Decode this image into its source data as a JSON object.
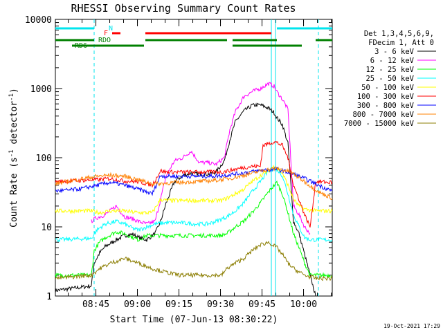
{
  "chart_data": {
    "type": "line",
    "title": "RHESSI Observing Summary Count Rates",
    "xlabel": "Start Time (07-Jun-13 08:30:22)",
    "ylabel_main": "Count Rate (s",
    "ylabel_sup1": "-1",
    "ylabel_mid": " detector",
    "ylabel_sup2": "-1",
    "ylabel_end": ")",
    "y_scale": "log",
    "ylim": [
      1,
      10000
    ],
    "xlim_minutes": [
      0,
      100
    ],
    "x_ticks": [
      "08:45",
      "09:00",
      "09:15",
      "09:30",
      "09:45",
      "10:00"
    ],
    "y_ticks": [
      "1",
      "10",
      "100",
      "1000",
      "10000"
    ],
    "legend_header": [
      "Det 1,3,4,5,6,9,",
      "FDecim 1, Att 0"
    ],
    "legend_position": "right",
    "timestamp": "19-Oct-2021 17:29",
    "flags": {
      "N_label": "N",
      "F_label": "F",
      "RDO_label": "RDO",
      "RD6_label": "RD6"
    },
    "series": [
      {
        "name": "3 - 6 keV",
        "color": "#000000",
        "x": [
          0,
          13,
          14,
          16,
          18,
          22,
          25,
          28,
          30,
          33,
          36,
          38,
          40,
          43,
          46,
          49,
          52,
          55,
          58,
          61,
          63,
          65,
          68,
          71,
          74,
          77,
          79,
          80,
          82,
          84,
          86,
          88,
          90,
          92,
          94
        ],
        "values": [
          1.2,
          1.4,
          3,
          4.2,
          5.2,
          6.5,
          7.5,
          7.8,
          7,
          6.5,
          8,
          12,
          22,
          45,
          55,
          60,
          58,
          58,
          62,
          90,
          180,
          330,
          470,
          570,
          580,
          520,
          450,
          380,
          300,
          160,
          12,
          8,
          4,
          2,
          1
        ]
      },
      {
        "name": "6 - 12 keV",
        "color": "#ff00ff",
        "x": [
          13,
          14,
          16,
          18,
          22,
          25,
          28,
          30,
          33,
          36,
          38,
          40,
          43,
          46,
          49,
          52,
          55,
          58,
          61,
          63,
          65,
          68,
          71,
          74,
          77,
          79,
          80,
          82,
          84,
          86,
          88,
          90,
          92
        ],
        "values": [
          12,
          13,
          14,
          15,
          20,
          14,
          13,
          12,
          11,
          12,
          25,
          55,
          90,
          100,
          125,
          85,
          85,
          80,
          100,
          250,
          460,
          760,
          900,
          1000,
          1180,
          1080,
          900,
          700,
          500,
          20,
          15,
          10,
          8
        ]
      },
      {
        "name": "12 - 25 keV",
        "color": "#00ff00",
        "x": [
          0,
          13,
          14,
          16,
          18,
          22,
          25,
          28,
          30,
          33,
          36,
          40,
          45,
          50,
          55,
          60,
          62,
          65,
          68,
          71,
          74,
          77,
          79,
          80,
          82,
          84,
          86,
          88,
          90,
          92,
          94,
          96,
          100
        ],
        "values": [
          2,
          2,
          4.5,
          6,
          7,
          8.5,
          8,
          7,
          6.5,
          7.5,
          7.5,
          7.5,
          7.5,
          7.5,
          7.5,
          7.5,
          8,
          10,
          12,
          16,
          22,
          32,
          40,
          44,
          30,
          16,
          8,
          5,
          3,
          2,
          2,
          2,
          2
        ]
      },
      {
        "name": "25 - 50 keV",
        "color": "#00ffff",
        "x": [
          0,
          13,
          15,
          18,
          22,
          25,
          28,
          30,
          33,
          36,
          40,
          45,
          50,
          55,
          58,
          60,
          62,
          65,
          68,
          71,
          74,
          77,
          79,
          80,
          82,
          84,
          86,
          88,
          90,
          92,
          94,
          96,
          100
        ],
        "values": [
          6.5,
          6.8,
          9,
          11,
          12,
          11,
          9.5,
          9,
          10,
          11,
          11.5,
          11.5,
          11,
          11,
          12,
          13,
          14,
          17,
          22,
          32,
          45,
          65,
          70,
          68,
          55,
          30,
          15,
          10,
          7,
          6.5,
          6.5,
          6.5,
          6.5
        ]
      },
      {
        "name": "50 - 100 keV",
        "color": "#ffff00",
        "x": [
          0,
          13,
          16,
          20,
          25,
          30,
          35,
          38,
          40,
          45,
          50,
          55,
          60,
          62,
          65,
          68,
          71,
          74,
          77,
          79,
          80,
          82,
          84,
          86,
          88,
          90,
          94,
          100
        ],
        "values": [
          17,
          17,
          16,
          17,
          17,
          16,
          16,
          25,
          24,
          24,
          24,
          24,
          24,
          26,
          30,
          35,
          45,
          55,
          65,
          75,
          72,
          60,
          40,
          25,
          20,
          18,
          17,
          17
        ]
      },
      {
        "name": "100 - 300 keV",
        "color": "#ff0000",
        "x": [
          0,
          10,
          15,
          20,
          25,
          30,
          35,
          38,
          40,
          45,
          50,
          55,
          60,
          62,
          65,
          68,
          71,
          74,
          75,
          77,
          79,
          80,
          82,
          84,
          86,
          88,
          90,
          92,
          94,
          96,
          98,
          100
        ],
        "values": [
          45,
          47,
          48,
          50,
          46,
          45,
          40,
          65,
          62,
          62,
          62,
          62,
          62,
          64,
          68,
          72,
          75,
          75,
          150,
          160,
          170,
          165,
          150,
          100,
          40,
          25,
          15,
          10,
          45,
          45,
          44,
          44
        ]
      },
      {
        "name": "300 - 800 keV",
        "color": "#0000ff",
        "x": [
          0,
          5,
          10,
          15,
          20,
          25,
          30,
          35,
          38,
          40,
          45,
          50,
          55,
          60,
          65,
          70,
          75,
          80,
          85,
          90,
          95,
          100
        ],
        "values": [
          33,
          34,
          36,
          40,
          44,
          40,
          35,
          30,
          55,
          54,
          54,
          54,
          54,
          55,
          58,
          62,
          66,
          68,
          60,
          50,
          40,
          33
        ]
      },
      {
        "name": "800 - 7000 keV",
        "color": "#ff8000",
        "x": [
          0,
          5,
          10,
          15,
          20,
          25,
          30,
          35,
          38,
          40,
          45,
          50,
          55,
          60,
          65,
          70,
          75,
          80,
          85,
          90,
          95,
          100
        ],
        "values": [
          42,
          46,
          50,
          54,
          56,
          54,
          48,
          42,
          42,
          43,
          44,
          45,
          46,
          48,
          52,
          58,
          66,
          70,
          62,
          45,
          32,
          26
        ]
      },
      {
        "name": "7000 - 15000 keV",
        "color": "#8b7d00",
        "x": [
          0,
          13,
          16,
          20,
          25,
          30,
          35,
          40,
          45,
          50,
          55,
          60,
          62,
          65,
          68,
          71,
          74,
          77,
          80,
          82,
          84,
          86,
          90,
          94,
          100
        ],
        "values": [
          1.8,
          2,
          2.5,
          3,
          3.5,
          3,
          2.5,
          2.2,
          2,
          2,
          2,
          2,
          2.5,
          3,
          3.5,
          4.5,
          5.5,
          6,
          5,
          4,
          3,
          2.5,
          2,
          1.8,
          1.8
        ]
      }
    ]
  }
}
